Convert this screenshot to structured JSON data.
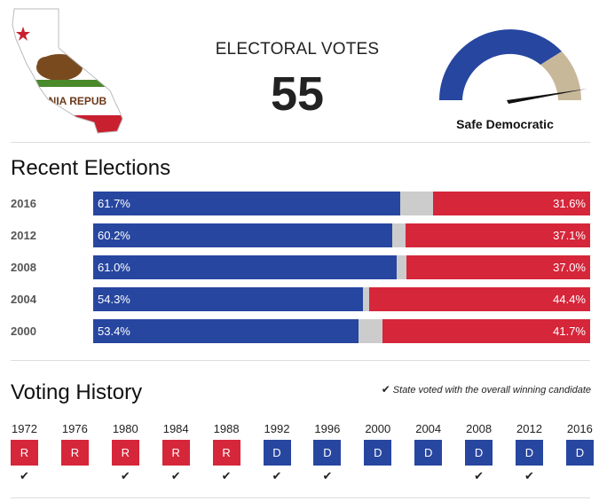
{
  "header": {
    "flag_text": "RNIA REPUB",
    "ev_label": "ELECTORAL VOTES",
    "ev_value": "55",
    "rating": "Safe Democratic"
  },
  "colors": {
    "democratic": "#2746a0",
    "republican": "#d6263a",
    "other": "#cccccc",
    "gauge_tan": "#c8b89a"
  },
  "recent_elections": {
    "title": "Recent Elections",
    "rows": [
      {
        "year": "2016",
        "dem_label": "61.7%",
        "rep_label": "31.6%",
        "dem": 61.7,
        "rep": 31.6
      },
      {
        "year": "2012",
        "dem_label": "60.2%",
        "rep_label": "37.1%",
        "dem": 60.2,
        "rep": 37.1
      },
      {
        "year": "2008",
        "dem_label": "61.0%",
        "rep_label": "37.0%",
        "dem": 61.0,
        "rep": 37.0
      },
      {
        "year": "2004",
        "dem_label": "54.3%",
        "rep_label": "44.4%",
        "dem": 54.3,
        "rep": 44.4
      },
      {
        "year": "2000",
        "dem_label": "53.4%",
        "rep_label": "41.7%",
        "dem": 53.4,
        "rep": 41.7
      }
    ]
  },
  "voting_history": {
    "title": "Voting History",
    "legend": "State voted with the overall winning candidate",
    "items": [
      {
        "year": "1972",
        "party": "R",
        "winner": true
      },
      {
        "year": "1976",
        "party": "R",
        "winner": false
      },
      {
        "year": "1980",
        "party": "R",
        "winner": true
      },
      {
        "year": "1984",
        "party": "R",
        "winner": true
      },
      {
        "year": "1988",
        "party": "R",
        "winner": true
      },
      {
        "year": "1992",
        "party": "D",
        "winner": true
      },
      {
        "year": "1996",
        "party": "D",
        "winner": true
      },
      {
        "year": "2000",
        "party": "D",
        "winner": false
      },
      {
        "year": "2004",
        "party": "D",
        "winner": false
      },
      {
        "year": "2008",
        "party": "D",
        "winner": true
      },
      {
        "year": "2012",
        "party": "D",
        "winner": true
      },
      {
        "year": "2016",
        "party": "D",
        "winner": false
      }
    ]
  }
}
